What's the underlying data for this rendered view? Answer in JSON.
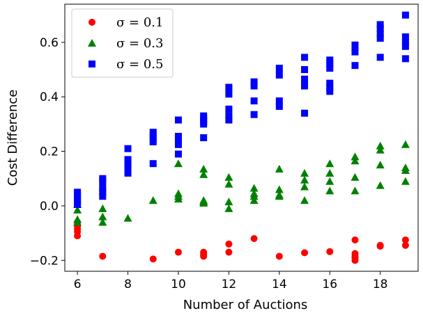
{
  "chart_data": {
    "type": "scatter",
    "title": "",
    "xlabel": "Number of Auctions",
    "ylabel": "Cost Difference",
    "xlim": [
      5.5,
      19.5
    ],
    "ylim": [
      -0.24,
      0.74
    ],
    "xticks": [
      6,
      8,
      10,
      12,
      14,
      16,
      18
    ],
    "yticks": [
      -0.2,
      0.0,
      0.2,
      0.4,
      0.6
    ],
    "ytick_labels": [
      "−0.2",
      "0.0",
      "0.2",
      "0.4",
      "0.6"
    ],
    "grid": false,
    "legend_position": "top-left",
    "series": [
      {
        "name": "σ = 0.1",
        "marker": "circle",
        "color": "#ff0000",
        "points": [
          [
            6,
            -0.06
          ],
          [
            6,
            -0.075
          ],
          [
            6,
            -0.085
          ],
          [
            6,
            -0.095
          ],
          [
            6,
            -0.11
          ],
          [
            7,
            -0.185
          ],
          [
            9,
            -0.195
          ],
          [
            10,
            -0.17
          ],
          [
            11,
            -0.17
          ],
          [
            11,
            -0.175
          ],
          [
            11,
            -0.18
          ],
          [
            11,
            -0.185
          ],
          [
            12,
            -0.14
          ],
          [
            12,
            -0.17
          ],
          [
            13,
            -0.12
          ],
          [
            14,
            -0.185
          ],
          [
            15,
            -0.172
          ],
          [
            16,
            -0.168
          ],
          [
            17,
            -0.125
          ],
          [
            17,
            -0.175
          ],
          [
            17,
            -0.185
          ],
          [
            17,
            -0.19
          ],
          [
            17,
            -0.2
          ],
          [
            18,
            -0.145
          ],
          [
            18,
            -0.148
          ],
          [
            19,
            -0.125
          ],
          [
            19,
            -0.145
          ]
        ]
      },
      {
        "name": "σ = 0.3",
        "marker": "triangle",
        "color": "#008000",
        "points": [
          [
            6,
            0.005
          ],
          [
            6,
            -0.015
          ],
          [
            6,
            -0.05
          ],
          [
            6,
            -0.06
          ],
          [
            7,
            -0.01
          ],
          [
            7,
            -0.04
          ],
          [
            7,
            -0.06
          ],
          [
            8,
            -0.045
          ],
          [
            9,
            0.02
          ],
          [
            10,
            0.155
          ],
          [
            10,
            0.045
          ],
          [
            10,
            0.035
          ],
          [
            10,
            0.025
          ],
          [
            11,
            0.135
          ],
          [
            11,
            0.115
          ],
          [
            11,
            0.02
          ],
          [
            11,
            0.015
          ],
          [
            11,
            0.01
          ],
          [
            12,
            0.105
          ],
          [
            12,
            0.08
          ],
          [
            12,
            0.015
          ],
          [
            12,
            -0.01
          ],
          [
            13,
            0.065
          ],
          [
            13,
            0.045
          ],
          [
            13,
            0.035
          ],
          [
            13,
            0.02
          ],
          [
            14,
            0.135
          ],
          [
            14,
            0.06
          ],
          [
            14,
            0.04
          ],
          [
            14,
            0.035
          ],
          [
            15,
            0.12
          ],
          [
            15,
            0.095
          ],
          [
            15,
            0.07
          ],
          [
            15,
            0.02
          ],
          [
            16,
            0.155
          ],
          [
            16,
            0.12
          ],
          [
            16,
            0.09
          ],
          [
            16,
            0.055
          ],
          [
            17,
            0.18
          ],
          [
            17,
            0.165
          ],
          [
            17,
            0.105
          ],
          [
            17,
            0.055
          ],
          [
            18,
            0.22
          ],
          [
            18,
            0.205
          ],
          [
            18,
            0.15
          ],
          [
            18,
            0.075
          ],
          [
            19,
            0.225
          ],
          [
            19,
            0.14
          ],
          [
            19,
            0.13
          ],
          [
            19,
            0.09
          ]
        ]
      },
      {
        "name": "σ = 0.5",
        "marker": "square",
        "color": "#0000ff",
        "points": [
          [
            6,
            0.05
          ],
          [
            6,
            0.04
          ],
          [
            6,
            0.025
          ],
          [
            6,
            0.015
          ],
          [
            6,
            0.005
          ],
          [
            7,
            0.1
          ],
          [
            7,
            0.09
          ],
          [
            7,
            0.065
          ],
          [
            7,
            0.05
          ],
          [
            7,
            0.035
          ],
          [
            8,
            0.21
          ],
          [
            8,
            0.17
          ],
          [
            8,
            0.155
          ],
          [
            8,
            0.14
          ],
          [
            8,
            0.12
          ],
          [
            9,
            0.27
          ],
          [
            9,
            0.26
          ],
          [
            9,
            0.245
          ],
          [
            9,
            0.235
          ],
          [
            9,
            0.155
          ],
          [
            10,
            0.315
          ],
          [
            10,
            0.255
          ],
          [
            10,
            0.24
          ],
          [
            10,
            0.225
          ],
          [
            10,
            0.19
          ],
          [
            11,
            0.33
          ],
          [
            11,
            0.32
          ],
          [
            11,
            0.31
          ],
          [
            11,
            0.3
          ],
          [
            11,
            0.25
          ],
          [
            12,
            0.435
          ],
          [
            12,
            0.41
          ],
          [
            12,
            0.355
          ],
          [
            12,
            0.33
          ],
          [
            12,
            0.315
          ],
          [
            13,
            0.455
          ],
          [
            13,
            0.44
          ],
          [
            13,
            0.385
          ],
          [
            13,
            0.335
          ],
          [
            14,
            0.505
          ],
          [
            14,
            0.48
          ],
          [
            14,
            0.385
          ],
          [
            14,
            0.365
          ],
          [
            15,
            0.545
          ],
          [
            15,
            0.5
          ],
          [
            15,
            0.465
          ],
          [
            15,
            0.44
          ],
          [
            15,
            0.34
          ],
          [
            16,
            0.535
          ],
          [
            16,
            0.52
          ],
          [
            16,
            0.505
          ],
          [
            16,
            0.45
          ],
          [
            16,
            0.435
          ],
          [
            16,
            0.42
          ],
          [
            17,
            0.59
          ],
          [
            17,
            0.58
          ],
          [
            17,
            0.565
          ],
          [
            17,
            0.515
          ],
          [
            18,
            0.665
          ],
          [
            18,
            0.65
          ],
          [
            18,
            0.63
          ],
          [
            18,
            0.615
          ],
          [
            18,
            0.545
          ],
          [
            19,
            0.7
          ],
          [
            19,
            0.62
          ],
          [
            19,
            0.6
          ],
          [
            19,
            0.585
          ],
          [
            19,
            0.54
          ]
        ]
      }
    ]
  }
}
